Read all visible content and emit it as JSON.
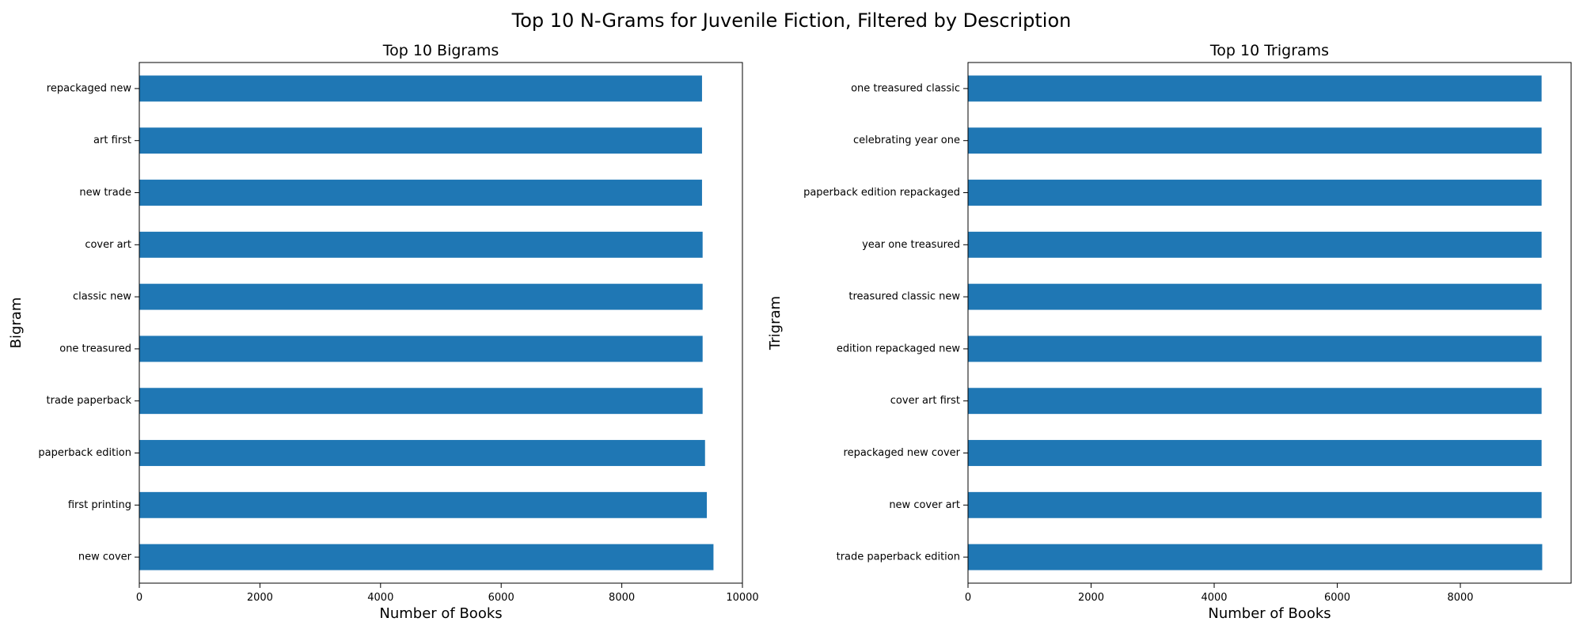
{
  "figure": {
    "title": "Top 10 N-Grams for Juvenile Fiction, Filtered by Description"
  },
  "colors": {
    "bar": "#1f77b4"
  },
  "chart_data": [
    {
      "type": "bar",
      "orientation": "horizontal",
      "title": "Top 10 Bigrams",
      "xlabel": "Number of Books",
      "ylabel": "Bigram",
      "xlim": [
        0,
        10000
      ],
      "xticks": [
        0,
        2000,
        4000,
        6000,
        8000,
        10000
      ],
      "tick_labels": [
        "0",
        "2000",
        "4000",
        "6000",
        "8000",
        "10000"
      ],
      "grid": false,
      "categories": [
        "repackaged new",
        "art first",
        "new trade",
        "cover art",
        "classic new",
        "one treasured",
        "trade paperback",
        "paperback edition",
        "first printing",
        "new cover"
      ],
      "values": [
        9330,
        9330,
        9330,
        9340,
        9340,
        9340,
        9340,
        9380,
        9410,
        9520
      ]
    },
    {
      "type": "bar",
      "orientation": "horizontal",
      "title": "Top 10 Trigrams",
      "xlabel": "Number of Books",
      "ylabel": "Trigram",
      "xlim": [
        0,
        9800
      ],
      "xticks": [
        0,
        2000,
        4000,
        6000,
        8000
      ],
      "tick_labels": [
        "0",
        "2000",
        "4000",
        "6000",
        "8000"
      ],
      "grid": false,
      "categories": [
        "one treasured classic",
        "celebrating year one",
        "paperback edition repackaged",
        "year one treasured",
        "treasured classic new",
        "edition repackaged new",
        "cover art first",
        "repackaged new cover",
        "new cover art",
        "trade paperback edition"
      ],
      "values": [
        9320,
        9320,
        9320,
        9320,
        9320,
        9320,
        9320,
        9320,
        9320,
        9330
      ]
    }
  ]
}
